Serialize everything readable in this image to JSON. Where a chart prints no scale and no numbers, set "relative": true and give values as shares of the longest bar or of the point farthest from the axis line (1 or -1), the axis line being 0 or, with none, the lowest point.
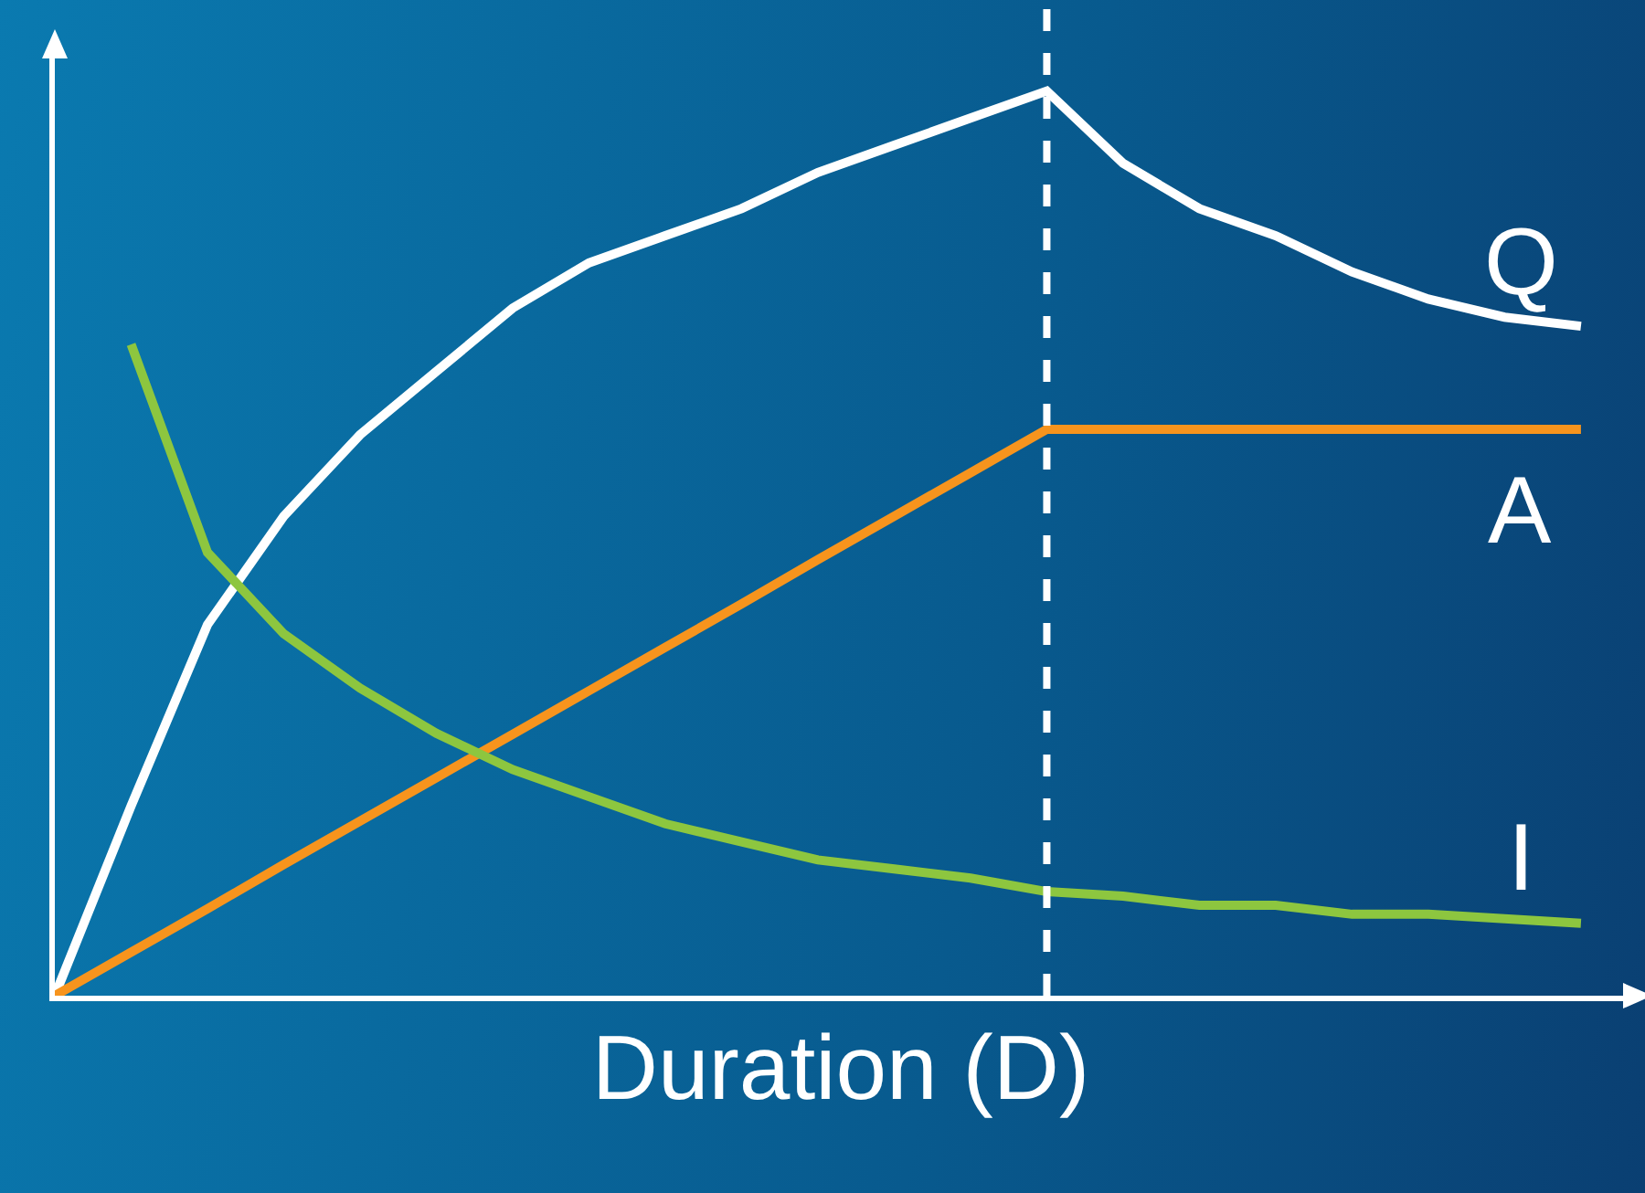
{
  "chart_data": {
    "type": "line",
    "relative": true,
    "xlabel": "Duration (D)",
    "categories": [
      null,
      null,
      null,
      null,
      null,
      null,
      null,
      null,
      null,
      null,
      null,
      null,
      null,
      null,
      null,
      null,
      null,
      null,
      null,
      null,
      null
    ],
    "series": [
      {
        "name": "Q",
        "color": "#ffffff",
        "values": [
          0,
          0.21,
          0.41,
          0.53,
          0.62,
          0.69,
          0.76,
          0.81,
          0.84,
          0.87,
          0.91,
          0.94,
          0.97,
          1,
          0.92,
          0.87,
          0.84,
          0.8,
          0.77,
          0.75,
          0.74
        ]
      },
      {
        "name": "A",
        "color": "#f7941d",
        "values": [
          0,
          0.048,
          0.096,
          0.145,
          0.193,
          0.241,
          0.289,
          0.337,
          0.385,
          0.433,
          0.482,
          0.53,
          0.578,
          0.626,
          0.626,
          0.626,
          0.626,
          0.626,
          0.626,
          0.626,
          0.626
        ]
      },
      {
        "name": "I",
        "color": "#8dc63f",
        "values": [
          null,
          0.72,
          0.49,
          0.4,
          0.34,
          0.29,
          0.25,
          0.22,
          0.19,
          0.17,
          0.15,
          0.14,
          0.13,
          0.115,
          0.11,
          0.1,
          0.1,
          0.09,
          0.09,
          0.085,
          0.08
        ]
      }
    ],
    "grid": false,
    "legend": false,
    "marker": "none",
    "line_style": "solid"
  }
}
